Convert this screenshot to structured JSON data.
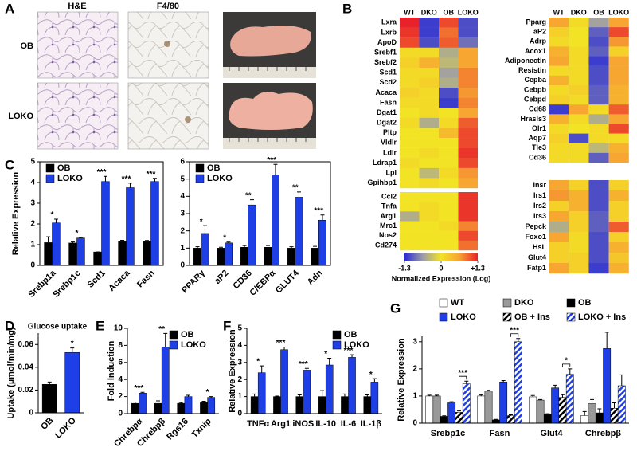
{
  "panel_a": {
    "label": "A",
    "columns": [
      "H&E",
      "F4/80"
    ],
    "rows": [
      "OB",
      "LOKO"
    ]
  },
  "chart_data": [
    {
      "type": "heatmap",
      "label": "B",
      "columns": [
        "WT",
        "DKO",
        "OB",
        "LOKO"
      ],
      "range": [
        -1.3,
        1.3
      ],
      "colors": [
        "#2a2ad4",
        "#9c9ca8",
        "#f2e424",
        "#f7a232",
        "#e8212a"
      ],
      "blocks": [
        {
          "rows": [
            "Lxra",
            "Lxrb",
            "ApoD",
            "Srebf1",
            "Srebf2",
            "Scd1",
            "Scd2",
            "Acaca",
            "Fasn",
            "Dgat1",
            "Dgat2",
            "Pltp",
            "Vldlr",
            "Ldlr",
            "Ldrap1",
            "Lpl",
            "Gpihbp1"
          ],
          "values": [
            [
              1.3,
              -1.2,
              1.1,
              -1.1
            ],
            [
              1.2,
              -1.2,
              0.9,
              -1.1
            ],
            [
              1.1,
              -1.1,
              1.0,
              -0.9
            ],
            [
              0.1,
              0.1,
              -0.5,
              0.6
            ],
            [
              0.2,
              0.5,
              -0.4,
              0.6
            ],
            [
              0.1,
              0.1,
              -0.6,
              0.8
            ],
            [
              0.1,
              0.2,
              -0.5,
              0.8
            ],
            [
              0.2,
              0.1,
              -1.1,
              0.7
            ],
            [
              0.1,
              0.1,
              -1.2,
              0.8
            ],
            [
              0,
              0.1,
              0,
              0.6
            ],
            [
              0.1,
              -0.5,
              0.1,
              1.0
            ],
            [
              0,
              0,
              0.4,
              1.1
            ],
            [
              0,
              0,
              0,
              1.1
            ],
            [
              0,
              0.1,
              0,
              1.2
            ],
            [
              0.1,
              0,
              0,
              1.1
            ],
            [
              0,
              -0.4,
              0.1,
              0.7
            ],
            [
              0,
              0.1,
              0,
              0.6
            ]
          ]
        },
        {
          "rows": [
            "Ccl2",
            "Tnfa",
            "Arg1",
            "Mrc1",
            "Nos2",
            "Cd274"
          ],
          "values": [
            [
              0,
              0,
              0,
              1.2
            ],
            [
              0,
              0.1,
              0,
              1.2
            ],
            [
              -0.5,
              0.1,
              0,
              1.2
            ],
            [
              0,
              0,
              0.1,
              0.8
            ],
            [
              0,
              0,
              0,
              1.1
            ],
            [
              0,
              0,
              0,
              0.9
            ]
          ]
        }
      ],
      "colorbar": {
        "ticks": [
          -1.3,
          0,
          {
            "value": 1.3,
            "label": "+1.3"
          }
        ],
        "label": "Normalized Expression (Log)"
      }
    },
    {
      "type": "heatmap",
      "columns": [
        "WT",
        "DKO",
        "OB",
        "LOKO"
      ],
      "range": [
        -1.3,
        1.3
      ],
      "colors": [
        "#2a2ad4",
        "#9c9ca8",
        "#f2e424",
        "#f7a232",
        "#e8212a"
      ],
      "blocks": [
        {
          "rows": [
            "Pparg",
            "aP2",
            "Adrp",
            "Acox1",
            "Adiponectin",
            "Resistin",
            "Cepba",
            "Cebpb",
            "Cebpd",
            "Cd68",
            "Hrasls3",
            "Olr1",
            "Aqp7",
            "Tle3",
            "Cd36"
          ],
          "values": [
            [
              0.6,
              0.1,
              -0.6,
              0.6
            ],
            [
              0.2,
              0,
              -1.0,
              1.1
            ],
            [
              0.1,
              0,
              -1.1,
              0.7
            ],
            [
              0.5,
              0.1,
              -1.0,
              0.2
            ],
            [
              0.6,
              0.1,
              -1.2,
              0.6
            ],
            [
              0.1,
              0.1,
              -1.1,
              0.6
            ],
            [
              0.5,
              0.1,
              -1.1,
              0.6
            ],
            [
              0.1,
              0.2,
              -1.0,
              0.5
            ],
            [
              0.2,
              0.1,
              -1.0,
              0.5
            ],
            [
              -1.2,
              0.6,
              0.1,
              1.0
            ],
            [
              0.5,
              0.1,
              -0.5,
              0.6
            ],
            [
              0.1,
              0,
              0.1,
              1.1
            ],
            [
              0.2,
              -1.1,
              0.1,
              0.1
            ],
            [
              0.1,
              0.1,
              -0.4,
              0.5
            ],
            [
              0.1,
              0.1,
              -1.0,
              0.6
            ]
          ]
        },
        {
          "rows": [
            "Insr",
            "Irs1",
            "Irs2",
            "Irs3",
            "Pepck",
            "Foxo1",
            "HsL",
            "Glut4",
            "Fatp1"
          ],
          "values": [
            [
              0.6,
              0.2,
              -1.1,
              0.2
            ],
            [
              0.7,
              0.5,
              -1.1,
              0.5
            ],
            [
              0.2,
              0.5,
              -1.1,
              0.2
            ],
            [
              0.6,
              0.2,
              -1.0,
              0.2
            ],
            [
              -0.5,
              0.2,
              -1.0,
              1.0
            ],
            [
              0.6,
              0.1,
              -1.1,
              0.2
            ],
            [
              0.2,
              0.1,
              -1.1,
              0.5
            ],
            [
              0.2,
              0.2,
              -1.1,
              0.3
            ],
            [
              0.6,
              0.2,
              -1.2,
              0.5
            ]
          ]
        }
      ]
    },
    {
      "type": "bar",
      "label": "C",
      "ylabel": "Relative Expression",
      "legend": "upper-left",
      "categories": [
        "Srebp1a",
        "Srebp1c",
        "Scd1",
        "Acaca",
        "Fasn"
      ],
      "series": [
        {
          "name": "OB",
          "color": "#000000",
          "values": [
            1.1,
            1.08,
            0.65,
            1.15,
            1.15
          ],
          "errors": [
            0.28,
            0.05,
            0,
            0.06,
            0.05
          ]
        },
        {
          "name": "LOKO",
          "color": "#1f3fe6",
          "values": [
            2.05,
            1.32,
            4.05,
            3.75,
            4.05
          ],
          "errors": [
            0.18,
            0.03,
            0.25,
            0.22,
            0.15
          ]
        }
      ],
      "significance": [
        "*",
        "*",
        "***",
        "***",
        "***"
      ],
      "ylim": [
        0,
        5
      ],
      "yticks": [
        0,
        1,
        2,
        3,
        4,
        5
      ]
    },
    {
      "type": "bar",
      "legend": "upper-left",
      "categories": [
        "PPARγ",
        "aP2",
        "CD36",
        "C/EBPα",
        "GLUT4",
        "Adn"
      ],
      "series": [
        {
          "name": "OB",
          "color": "#000000",
          "values": [
            1.0,
            1.0,
            1.05,
            1.05,
            1.0,
            1.0
          ],
          "errors": [
            0.08,
            0.05,
            0.1,
            0.1,
            0.08,
            0.1
          ]
        },
        {
          "name": "LOKO",
          "color": "#1f3fe6",
          "values": [
            1.85,
            1.3,
            3.5,
            5.25,
            3.95,
            2.62
          ],
          "errors": [
            0.45,
            0.05,
            0.3,
            0.6,
            0.3,
            0.3
          ]
        }
      ],
      "significance": [
        "*",
        "*",
        "**",
        "***",
        "**",
        "***"
      ],
      "ylim": [
        0,
        6
      ],
      "yticks": [
        0,
        1,
        2,
        3,
        4,
        5,
        6
      ]
    },
    {
      "type": "bar",
      "label": "D",
      "title": "Glucose uptake",
      "ylabel": "Uptake (µmol/min/mg)",
      "categories": [
        "OB",
        "LOKO"
      ],
      "values": [
        0.025,
        0.053
      ],
      "errors": [
        0.002,
        0.004
      ],
      "colors": [
        "#000000",
        "#1f3fe6"
      ],
      "significance": [
        null,
        "*"
      ],
      "ylim": [
        0,
        0.07
      ],
      "yticks": [
        0,
        0.02,
        0.04,
        0.06
      ]
    },
    {
      "type": "bar",
      "label": "E",
      "ylabel": "Fold Induction",
      "legend": "upper-right",
      "categories": [
        "Chrebpα",
        "Chrebpβ",
        "Rgs16",
        "Txnip"
      ],
      "series": [
        {
          "name": "OB",
          "color": "#000000",
          "values": [
            1.2,
            1.2,
            1.2,
            1.3
          ],
          "errors": [
            0.15,
            0.3,
            0.1,
            0.15
          ]
        },
        {
          "name": "LOKO",
          "color": "#1f3fe6",
          "values": [
            2.4,
            7.8,
            2.0,
            1.9
          ],
          "errors": [
            0.1,
            1.6,
            0.15,
            0.1
          ]
        }
      ],
      "significance": [
        "***",
        "**",
        null,
        "*"
      ],
      "ylim": [
        0,
        10
      ],
      "yticks": [
        0,
        2,
        4,
        6,
        8,
        10
      ]
    },
    {
      "type": "bar",
      "label": "F",
      "ylabel": "Relative Expression",
      "legend": "upper-right",
      "categories": [
        "TNFα",
        "Arg1",
        "iNOS",
        "IL-10",
        "IL-6",
        "IL-1β"
      ],
      "series": [
        {
          "name": "OB",
          "color": "#000000",
          "values": [
            1.0,
            1.0,
            1.0,
            1.0,
            1.0,
            1.0
          ],
          "errors": [
            0.15,
            0.03,
            0.1,
            0.35,
            0.15,
            0.1
          ]
        },
        {
          "name": "LOKO",
          "color": "#1f3fe6",
          "values": [
            2.4,
            3.75,
            2.55,
            2.85,
            3.3,
            1.85
          ],
          "errors": [
            0.4,
            0.15,
            0.1,
            0.4,
            0.15,
            0.2
          ]
        }
      ],
      "significance": [
        "*",
        "***",
        "***",
        "*",
        "***",
        "*"
      ],
      "ylim": [
        0,
        5
      ],
      "yticks": [
        0,
        1,
        2,
        3,
        4,
        5
      ]
    },
    {
      "type": "bar",
      "label": "G",
      "ylabel": "Relative Expression",
      "legend": "top",
      "bracket": true,
      "categories": [
        "Srebp1c",
        "Fasn",
        "Glut4",
        "Chrebpβ"
      ],
      "series": [
        {
          "name": "WT",
          "color": "#ffffff",
          "values": [
            1.0,
            1.0,
            0.97,
            0.28
          ],
          "errors": [
            0.03,
            0.04,
            0.05,
            0.15
          ]
        },
        {
          "name": "DKO",
          "color": "#999999",
          "values": [
            1.0,
            1.18,
            0.85,
            0.72
          ],
          "errors": [
            0.03,
            0.03,
            0.02,
            0.15
          ]
        },
        {
          "name": "OB",
          "color": "#000000",
          "values": [
            0.25,
            0.12,
            0.32,
            0.38
          ],
          "errors": [
            0.02,
            0.02,
            0.03,
            0.15
          ]
        },
        {
          "name": "LOKO",
          "color": "#1f3fe6",
          "values": [
            0.75,
            1.52,
            1.3,
            2.75
          ],
          "errors": [
            0.04,
            0.05,
            0.1,
            0.6
          ]
        },
        {
          "name": "OB + Ins",
          "color": "#000000",
          "hatch": true,
          "values": [
            0.4,
            0.28,
            0.95,
            0.55
          ],
          "errors": [
            0.05,
            0.03,
            0.1,
            0.2
          ]
        },
        {
          "name": "LOKO + Ins",
          "color": "#1f3fe6",
          "hatch": true,
          "values": [
            1.45,
            3.0,
            1.8,
            1.38
          ],
          "errors": [
            0.1,
            0.12,
            0.2,
            0.4
          ]
        }
      ],
      "significance": [
        "***",
        "***",
        "*",
        null
      ],
      "ylim": [
        0,
        3.2
      ],
      "yticks": [
        0,
        1,
        2,
        3
      ]
    }
  ]
}
